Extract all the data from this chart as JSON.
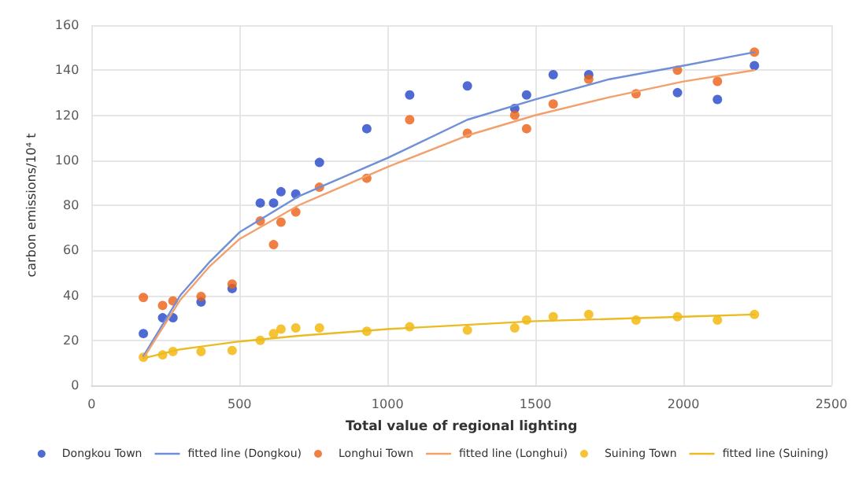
{
  "chart_data": {
    "type": "scatter",
    "xlabel": "Total value of regional lighting",
    "ylabel": "carbon emissions/10⁴ t",
    "xlim": [
      0,
      2500
    ],
    "xticks": [
      0,
      500,
      1000,
      1500,
      2000,
      2500
    ],
    "ylim": [
      0,
      160
    ],
    "yticks": [
      0,
      20,
      40,
      60,
      80,
      100,
      120,
      140,
      160
    ],
    "grid": true,
    "legend": "bottom",
    "marker": "circle",
    "series": [
      {
        "name": "Dongkou Town",
        "color": "#2346c8",
        "x": [
          175,
          240,
          275,
          370,
          475,
          570,
          615,
          640,
          690,
          770,
          930,
          1075,
          1270,
          1430,
          1470,
          1560,
          1680,
          1980,
          2115,
          2240
        ],
        "values": [
          23,
          30,
          30,
          37,
          43,
          81,
          81,
          86,
          85,
          99,
          114,
          129,
          133,
          123,
          129,
          138,
          138,
          130,
          127,
          142
        ]
      },
      {
        "name": "fitted line (Dongkou)",
        "type": "line",
        "marker": "none",
        "line_style": "solid",
        "color": "#6f8fd6",
        "x": [
          175,
          300,
          400,
          500,
          700,
          1000,
          1270,
          1500,
          1750,
          2000,
          2240
        ],
        "values": [
          13,
          40,
          55,
          68,
          84,
          101,
          118,
          127,
          136,
          142,
          148
        ]
      },
      {
        "name": "Longhui Town",
        "color": "#ec5f14",
        "x": [
          175,
          240,
          275,
          370,
          475,
          570,
          615,
          640,
          690,
          770,
          930,
          1075,
          1270,
          1430,
          1470,
          1560,
          1680,
          1840,
          1980,
          2115,
          2240
        ],
        "values": [
          39,
          35.5,
          37.5,
          39.5,
          45,
          73,
          62.5,
          72.5,
          77,
          88,
          92,
          118,
          112,
          120,
          114,
          125,
          136,
          129.5,
          140,
          135,
          148
        ]
      },
      {
        "name": "fitted line (Longhui)",
        "type": "line",
        "marker": "none",
        "line_style": "solid",
        "color": "#f2a06c",
        "x": [
          175,
          300,
          400,
          500,
          700,
          1000,
          1270,
          1500,
          1750,
          2000,
          2240
        ],
        "values": [
          12,
          38,
          53,
          65,
          80,
          97,
          111,
          120,
          128,
          135,
          140
        ]
      },
      {
        "name": "Suining Town",
        "color": "#f2b400",
        "x": [
          175,
          240,
          275,
          370,
          475,
          570,
          615,
          640,
          690,
          770,
          930,
          1075,
          1270,
          1430,
          1470,
          1560,
          1680,
          1840,
          1980,
          2115,
          2240
        ],
        "values": [
          12.5,
          13.5,
          15,
          15,
          15.5,
          20,
          23,
          25,
          25.5,
          25.5,
          24,
          26,
          24.5,
          25.5,
          29,
          30.5,
          31.5,
          29,
          30.5,
          29,
          31.5
        ]
      },
      {
        "name": "fitted line (Suining)",
        "type": "line",
        "marker": "none",
        "line_style": "solid",
        "color": "#eabb22",
        "x": [
          175,
          300,
          500,
          700,
          1000,
          1500,
          2000,
          2240
        ],
        "values": [
          12,
          16,
          19.5,
          22,
          25,
          28.5,
          30.5,
          31.5
        ]
      }
    ]
  }
}
